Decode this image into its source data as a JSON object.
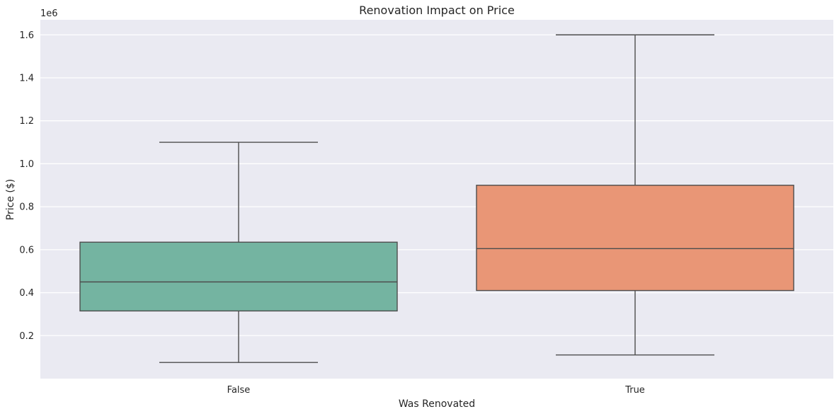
{
  "chart_data": {
    "type": "box",
    "title": "Renovation Impact on Price",
    "xlabel": "Was Renovated",
    "ylabel": "Price ($)",
    "y_offset_label": "1e6",
    "ylim": [
      0.0,
      1.67
    ],
    "yticks": [
      0.2,
      0.4,
      0.6,
      0.8,
      1.0,
      1.2,
      1.4,
      1.6
    ],
    "ytick_labels": [
      "0.2",
      "0.4",
      "0.6",
      "0.8",
      "1.0",
      "1.2",
      "1.4",
      "1.6"
    ],
    "grid": true,
    "categories": [
      "False",
      "True"
    ],
    "boxes": [
      {
        "category": "False",
        "whisker_low": 0.075,
        "q1": 0.315,
        "median": 0.45,
        "q3": 0.635,
        "whisker_high": 1.1,
        "color": "#74b4a1"
      },
      {
        "category": "True",
        "whisker_low": 0.11,
        "q1": 0.41,
        "median": 0.605,
        "q3": 0.9,
        "whisker_high": 1.6,
        "color": "#e99676"
      }
    ]
  },
  "style": {
    "plot_background": "#eaeaf2",
    "grid_color": "#ffffff",
    "line_color": "#4d4d4d",
    "text_color": "#262626"
  }
}
